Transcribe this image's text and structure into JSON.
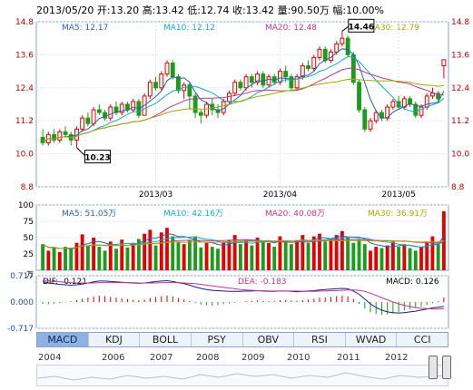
{
  "header": {
    "text": "2013/05/20 开:13.20 高:13.42 低:12.74 收:13.42 量:90.50万 幅:10.00%"
  },
  "ma_price": [
    {
      "label": "MA5: 12.17",
      "color": "#2f5ea8"
    },
    {
      "label": "MA10: 12.12",
      "color": "#15a9c4"
    },
    {
      "label": "MA20: 12.48",
      "color": "#c2378a"
    },
    {
      "label": "MA30: 12.79",
      "color": "#a3a800"
    }
  ],
  "ma_volume": [
    {
      "label": "MA5: 51.05万",
      "color": "#2f5ea8"
    },
    {
      "label": "MA10: 42.16万",
      "color": "#15a9c4"
    },
    {
      "label": "MA20: 40.08万",
      "color": "#c2378a"
    },
    {
      "label": "MA30: 36.91万",
      "color": "#a3a800"
    }
  ],
  "macd_legend": [
    {
      "label": "DIF: -0.121",
      "color": "#000000"
    },
    {
      "label": "DEA: -0.183",
      "color": "#c2378a"
    },
    {
      "label": "MACD: 0.126",
      "color": "#000000"
    }
  ],
  "tabs": [
    "MACD",
    "KDJ",
    "BOLL",
    "PSY",
    "OBV",
    "RSI",
    "WVAD",
    "CCI"
  ],
  "active_tab": "MACD",
  "years": [
    "2004",
    "2006",
    "2007",
    "2008",
    "2009",
    "2010",
    "2011",
    "2012"
  ],
  "chart_data": {
    "type": "candlestick",
    "price_axis": {
      "ticks": [
        "14.8",
        "13.6",
        "12.4",
        "11.2",
        "10.0",
        "8.8"
      ],
      "ylim": [
        8.8,
        14.8
      ]
    },
    "date_ticks": [
      "2013/03",
      "2013/04",
      "2013/05"
    ],
    "volume_axis": {
      "unit": "万",
      "ticks": [
        "100",
        "75",
        "50",
        "25"
      ],
      "ylim": [
        0,
        100
      ]
    },
    "macd_axis": {
      "ticks": [
        "0.717",
        "0.000",
        "-0.717"
      ],
      "ylim": [
        -0.717,
        0.717
      ]
    },
    "annotations": [
      {
        "label": "10.23"
      },
      {
        "label": "14.46"
      }
    ],
    "ohlc": [
      [
        10.6,
        10.4,
        10.9,
        10.3
      ],
      [
        10.4,
        10.7,
        10.8,
        10.3
      ],
      [
        10.7,
        10.5,
        10.9,
        10.4
      ],
      [
        10.5,
        10.8,
        10.9,
        10.4
      ],
      [
        10.8,
        10.7,
        11.0,
        10.6
      ],
      [
        10.7,
        10.5,
        10.8,
        10.3
      ],
      [
        10.5,
        10.9,
        11.0,
        10.23
      ],
      [
        10.9,
        11.3,
        11.4,
        10.8
      ],
      [
        11.3,
        11.1,
        11.5,
        11.0
      ],
      [
        11.1,
        11.6,
        11.7,
        11.0
      ],
      [
        11.6,
        11.5,
        11.8,
        11.4
      ],
      [
        11.5,
        11.3,
        11.6,
        11.2
      ],
      [
        11.3,
        11.7,
        11.8,
        11.2
      ],
      [
        11.7,
        11.5,
        11.9,
        11.4
      ],
      [
        11.5,
        11.8,
        11.9,
        11.4
      ],
      [
        11.8,
        11.6,
        11.9,
        11.5
      ],
      [
        11.6,
        11.9,
        12.0,
        11.5
      ],
      [
        11.9,
        11.4,
        12.0,
        11.3
      ],
      [
        11.4,
        12.1,
        12.2,
        11.4
      ],
      [
        12.1,
        12.6,
        12.7,
        12.0
      ],
      [
        12.6,
        12.4,
        12.8,
        12.3
      ],
      [
        12.4,
        12.9,
        13.0,
        12.3
      ],
      [
        12.9,
        13.3,
        13.4,
        12.8
      ],
      [
        13.3,
        12.8,
        13.4,
        12.7
      ],
      [
        12.8,
        12.3,
        12.9,
        12.2
      ],
      [
        12.3,
        12.5,
        12.6,
        12.0
      ],
      [
        12.5,
        12.1,
        12.6,
        11.6
      ],
      [
        12.1,
        11.5,
        12.2,
        11.3
      ],
      [
        11.5,
        11.4,
        11.6,
        11.1
      ],
      [
        11.4,
        11.8,
        11.9,
        11.3
      ],
      [
        11.8,
        11.6,
        12.0,
        11.4
      ],
      [
        11.6,
        11.5,
        11.8,
        11.3
      ],
      [
        11.5,
        11.9,
        12.0,
        11.4
      ],
      [
        11.9,
        12.2,
        12.3,
        11.8
      ],
      [
        12.2,
        12.6,
        12.7,
        12.1
      ],
      [
        12.6,
        12.4,
        12.7,
        12.3
      ],
      [
        12.4,
        12.8,
        12.9,
        12.3
      ],
      [
        12.8,
        12.6,
        12.9,
        12.4
      ],
      [
        12.6,
        12.9,
        13.0,
        12.5
      ],
      [
        12.9,
        12.5,
        13.0,
        12.4
      ],
      [
        12.5,
        12.8,
        12.9,
        12.4
      ],
      [
        12.8,
        12.6,
        12.9,
        12.5
      ],
      [
        12.6,
        13.0,
        13.1,
        12.5
      ],
      [
        13.0,
        12.8,
        13.2,
        12.6
      ],
      [
        12.8,
        12.4,
        12.9,
        12.3
      ],
      [
        12.4,
        12.8,
        12.9,
        12.3
      ],
      [
        12.8,
        13.2,
        13.3,
        12.7
      ],
      [
        13.2,
        13.1,
        13.4,
        13.0
      ],
      [
        13.1,
        13.5,
        13.6,
        13.0
      ],
      [
        13.5,
        13.8,
        13.9,
        13.4
      ],
      [
        13.8,
        13.4,
        13.9,
        13.3
      ],
      [
        13.4,
        13.7,
        13.8,
        13.3
      ],
      [
        13.7,
        14.0,
        14.1,
        13.6
      ],
      [
        14.0,
        14.2,
        14.46,
        13.9
      ],
      [
        14.2,
        13.6,
        14.3,
        13.5
      ],
      [
        13.6,
        12.6,
        13.7,
        12.5
      ],
      [
        12.6,
        11.6,
        12.7,
        11.5
      ],
      [
        11.6,
        10.9,
        11.7,
        10.8
      ],
      [
        10.9,
        11.2,
        11.3,
        10.8
      ],
      [
        11.2,
        11.5,
        11.6,
        11.1
      ],
      [
        11.5,
        11.3,
        11.6,
        11.2
      ],
      [
        11.3,
        11.7,
        11.8,
        11.2
      ],
      [
        11.7,
        11.9,
        12.0,
        11.6
      ],
      [
        11.9,
        11.7,
        12.1,
        11.6
      ],
      [
        11.7,
        12.0,
        12.1,
        11.6
      ],
      [
        12.0,
        11.8,
        12.1,
        11.7
      ],
      [
        11.8,
        11.4,
        11.9,
        11.3
      ],
      [
        11.4,
        11.7,
        11.8,
        11.3
      ],
      [
        11.7,
        12.1,
        12.2,
        11.6
      ],
      [
        12.1,
        12.2,
        12.4,
        12.0
      ],
      [
        12.2,
        12.0,
        12.3,
        11.9
      ],
      [
        13.2,
        13.42,
        13.42,
        12.74
      ]
    ],
    "volume": [
      40,
      30,
      35,
      28,
      36,
      33,
      42,
      55,
      38,
      50,
      36,
      30,
      44,
      33,
      47,
      35,
      42,
      48,
      56,
      62,
      38,
      58,
      65,
      52,
      44,
      40,
      46,
      52,
      35,
      42,
      36,
      33,
      44,
      46,
      54,
      40,
      46,
      38,
      50,
      44,
      42,
      36,
      52,
      44,
      40,
      46,
      54,
      42,
      52,
      56,
      44,
      48,
      54,
      60,
      50,
      42,
      48,
      40,
      30,
      36,
      34,
      38,
      44,
      36,
      40,
      34,
      30,
      36,
      44,
      52,
      40,
      90.5
    ],
    "macd_hist": [
      -0.05,
      -0.06,
      -0.05,
      -0.03,
      -0.01,
      0.02,
      0.05,
      0.09,
      0.12,
      0.15,
      0.17,
      0.16,
      0.14,
      0.12,
      0.1,
      0.08,
      0.06,
      0.05,
      0.07,
      0.11,
      0.14,
      0.16,
      0.18,
      0.15,
      0.11,
      0.07,
      0.03,
      -0.03,
      -0.07,
      -0.09,
      -0.1,
      -0.08,
      -0.06,
      -0.04,
      -0.02,
      0.0,
      0.02,
      0.03,
      0.04,
      0.03,
      0.02,
      0.03,
      0.05,
      0.06,
      0.04,
      0.03,
      0.05,
      0.07,
      0.09,
      0.12,
      0.13,
      0.14,
      0.16,
      0.18,
      0.16,
      0.08,
      -0.05,
      -0.18,
      -0.28,
      -0.33,
      -0.35,
      -0.34,
      -0.31,
      -0.27,
      -0.23,
      -0.19,
      -0.16,
      -0.13,
      -0.08,
      -0.03,
      0.02,
      0.126
    ],
    "dif": [
      0.55,
      0.52,
      0.5,
      0.48,
      0.47,
      0.46,
      0.47,
      0.49,
      0.52,
      0.55,
      0.57,
      0.57,
      0.56,
      0.55,
      0.54,
      0.53,
      0.52,
      0.51,
      0.52,
      0.54,
      0.56,
      0.57,
      0.58,
      0.56,
      0.53,
      0.5,
      0.46,
      0.41,
      0.37,
      0.34,
      0.32,
      0.31,
      0.3,
      0.29,
      0.29,
      0.29,
      0.3,
      0.3,
      0.31,
      0.3,
      0.29,
      0.29,
      0.3,
      0.3,
      0.29,
      0.28,
      0.29,
      0.3,
      0.31,
      0.33,
      0.34,
      0.35,
      0.36,
      0.37,
      0.36,
      0.3,
      0.21,
      0.08,
      -0.05,
      -0.15,
      -0.22,
      -0.27,
      -0.29,
      -0.3,
      -0.29,
      -0.27,
      -0.25,
      -0.22,
      -0.19,
      -0.16,
      -0.14,
      -0.121
    ],
    "dea": [
      0.58,
      0.57,
      0.56,
      0.55,
      0.54,
      0.53,
      0.52,
      0.52,
      0.52,
      0.52,
      0.53,
      0.53,
      0.53,
      0.53,
      0.53,
      0.53,
      0.53,
      0.52,
      0.52,
      0.52,
      0.52,
      0.53,
      0.53,
      0.53,
      0.53,
      0.52,
      0.51,
      0.5,
      0.48,
      0.46,
      0.44,
      0.42,
      0.4,
      0.38,
      0.36,
      0.34,
      0.33,
      0.32,
      0.31,
      0.31,
      0.3,
      0.3,
      0.3,
      0.3,
      0.3,
      0.3,
      0.29,
      0.29,
      0.29,
      0.3,
      0.3,
      0.31,
      0.31,
      0.32,
      0.33,
      0.33,
      0.32,
      0.29,
      0.24,
      0.18,
      0.12,
      0.06,
      0.0,
      -0.05,
      -0.09,
      -0.12,
      -0.15,
      -0.17,
      -0.18,
      -0.19,
      -0.19,
      -0.183
    ]
  }
}
